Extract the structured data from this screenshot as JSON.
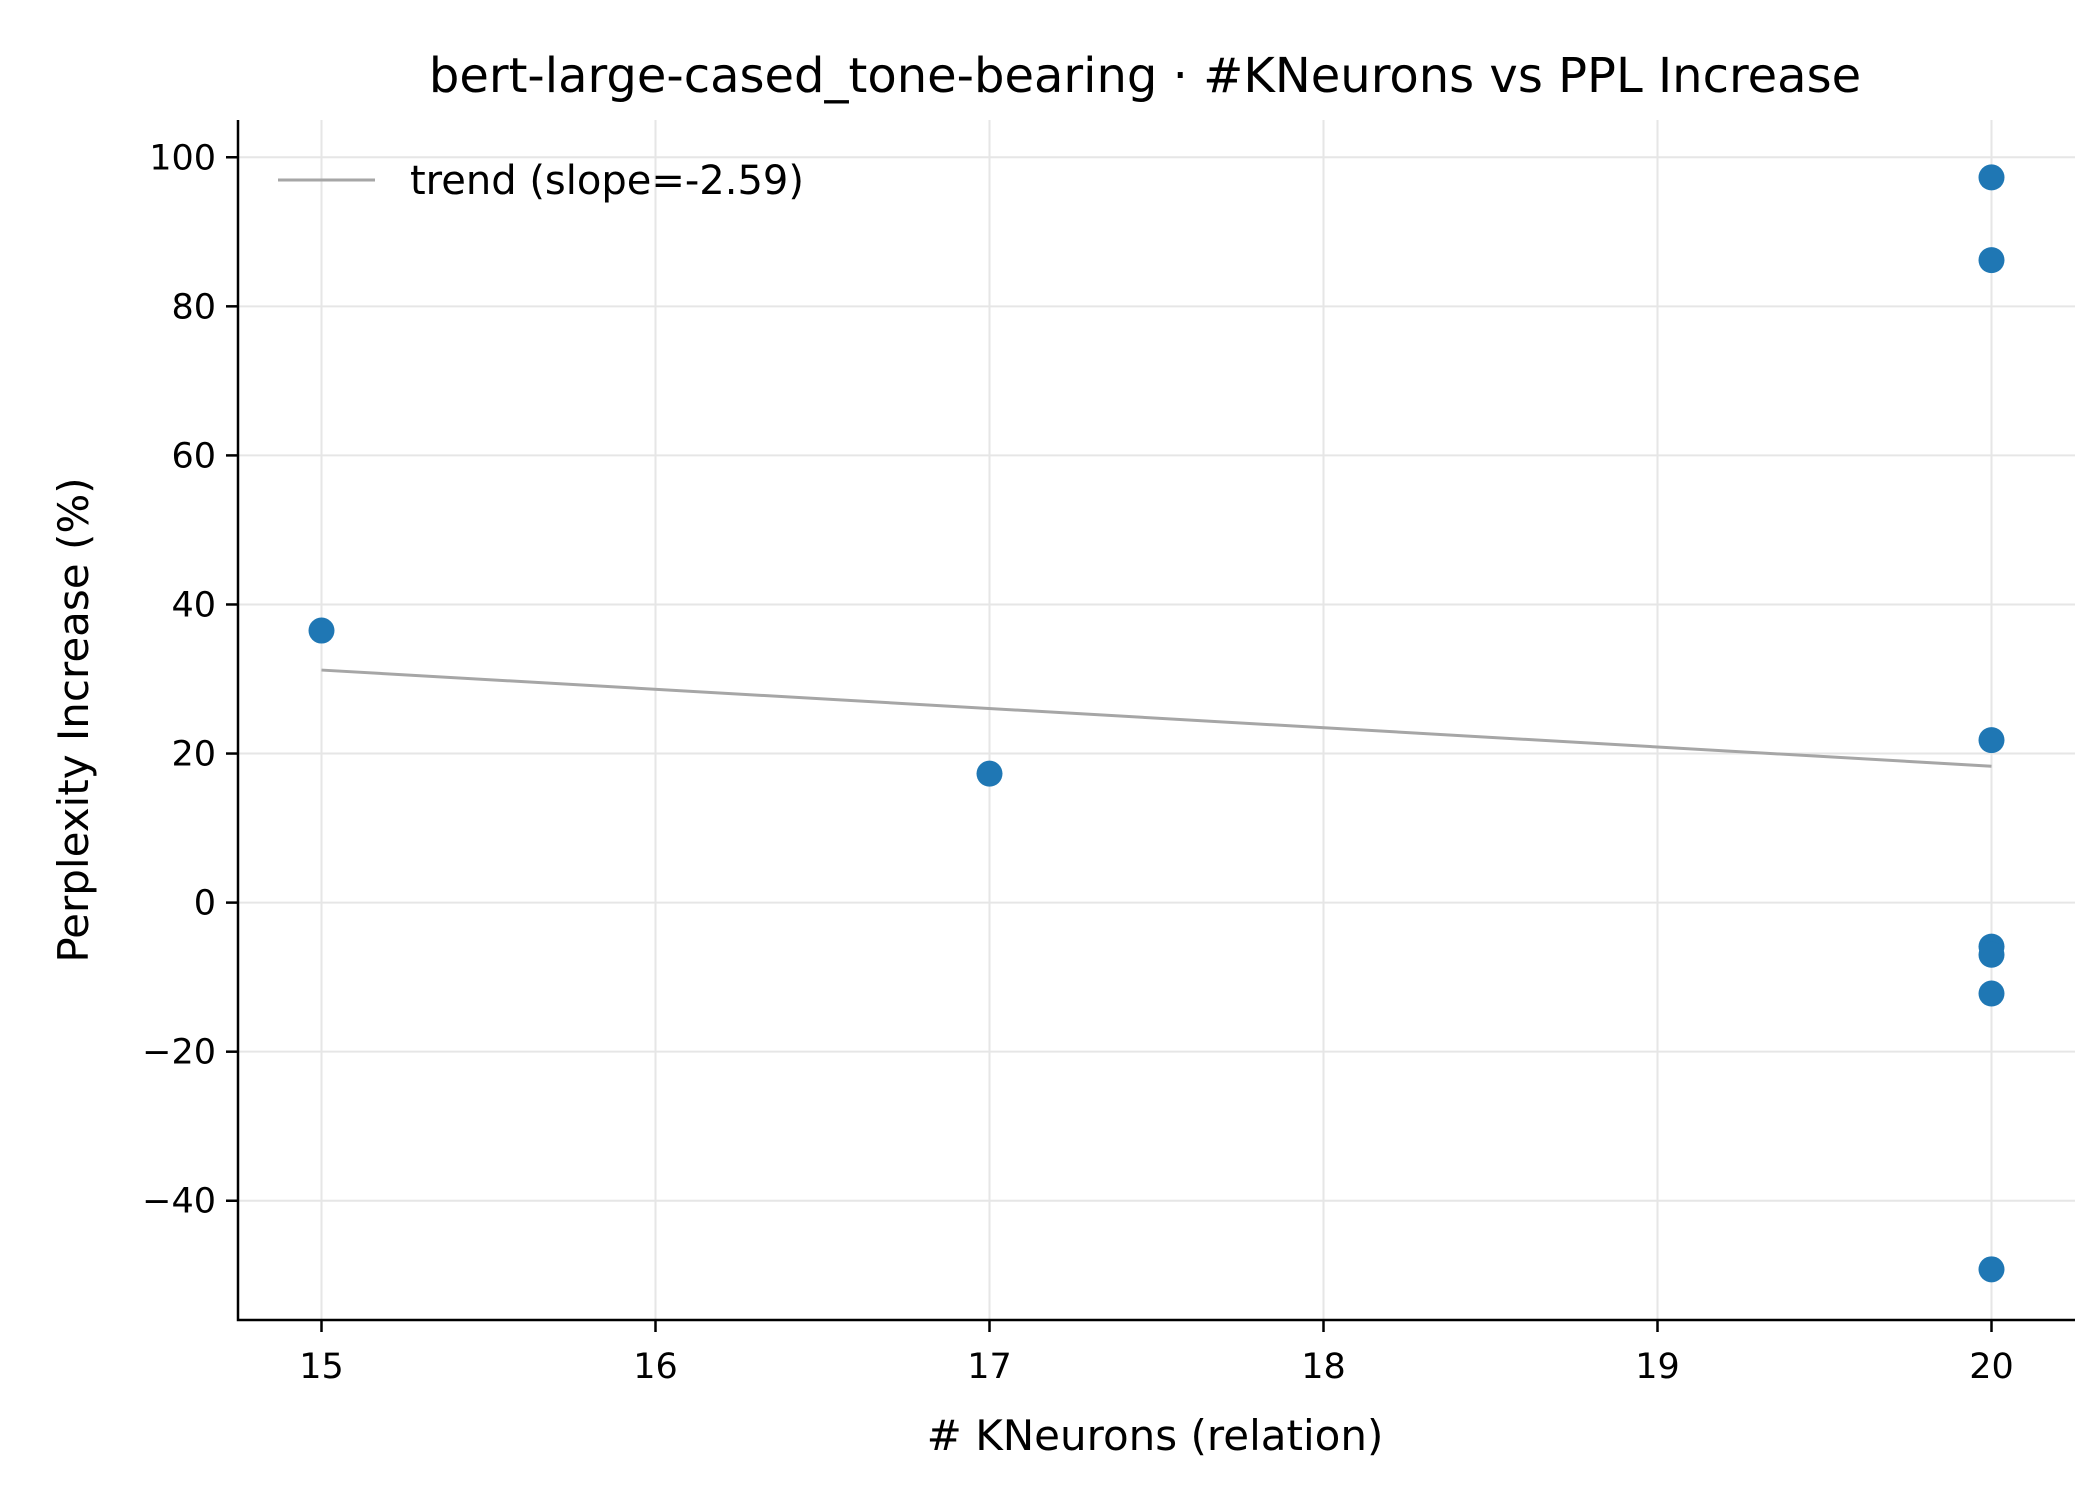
{
  "chart_data": {
    "type": "scatter",
    "title": "bert-large-cased_tone-bearing · #KNeurons vs PPL Increase",
    "xlabel": "# KNeurons (relation)",
    "ylabel": "Perplexity Increase (%)",
    "xlim": [
      14.75,
      20.25
    ],
    "ylim": [
      -56,
      105
    ],
    "xticks": [
      15,
      16,
      17,
      18,
      19,
      20
    ],
    "xtick_labels": [
      "15",
      "16",
      "17",
      "18",
      "19",
      "20"
    ],
    "yticks": [
      -40,
      -20,
      0,
      20,
      40,
      60,
      80,
      100
    ],
    "ytick_labels": [
      "−40",
      "−20",
      "0",
      "20",
      "40",
      "60",
      "80",
      "100"
    ],
    "grid": true,
    "legend_position": "top-left",
    "points": [
      {
        "x": 15,
        "y": 36.5
      },
      {
        "x": 17,
        "y": 17.3
      },
      {
        "x": 20,
        "y": 97.3
      },
      {
        "x": 20,
        "y": 86.2
      },
      {
        "x": 20,
        "y": 21.8
      },
      {
        "x": 20,
        "y": -5.9
      },
      {
        "x": 20,
        "y": -7.0
      },
      {
        "x": 20,
        "y": -12.2
      },
      {
        "x": 20,
        "y": -49.2
      }
    ],
    "trend": {
      "label": "trend (slope=-2.59)",
      "x": [
        15,
        20
      ],
      "y": [
        31.2,
        18.3
      ]
    },
    "colors": {
      "points": "#1f77b4",
      "trend": "#a6a6a6"
    }
  }
}
